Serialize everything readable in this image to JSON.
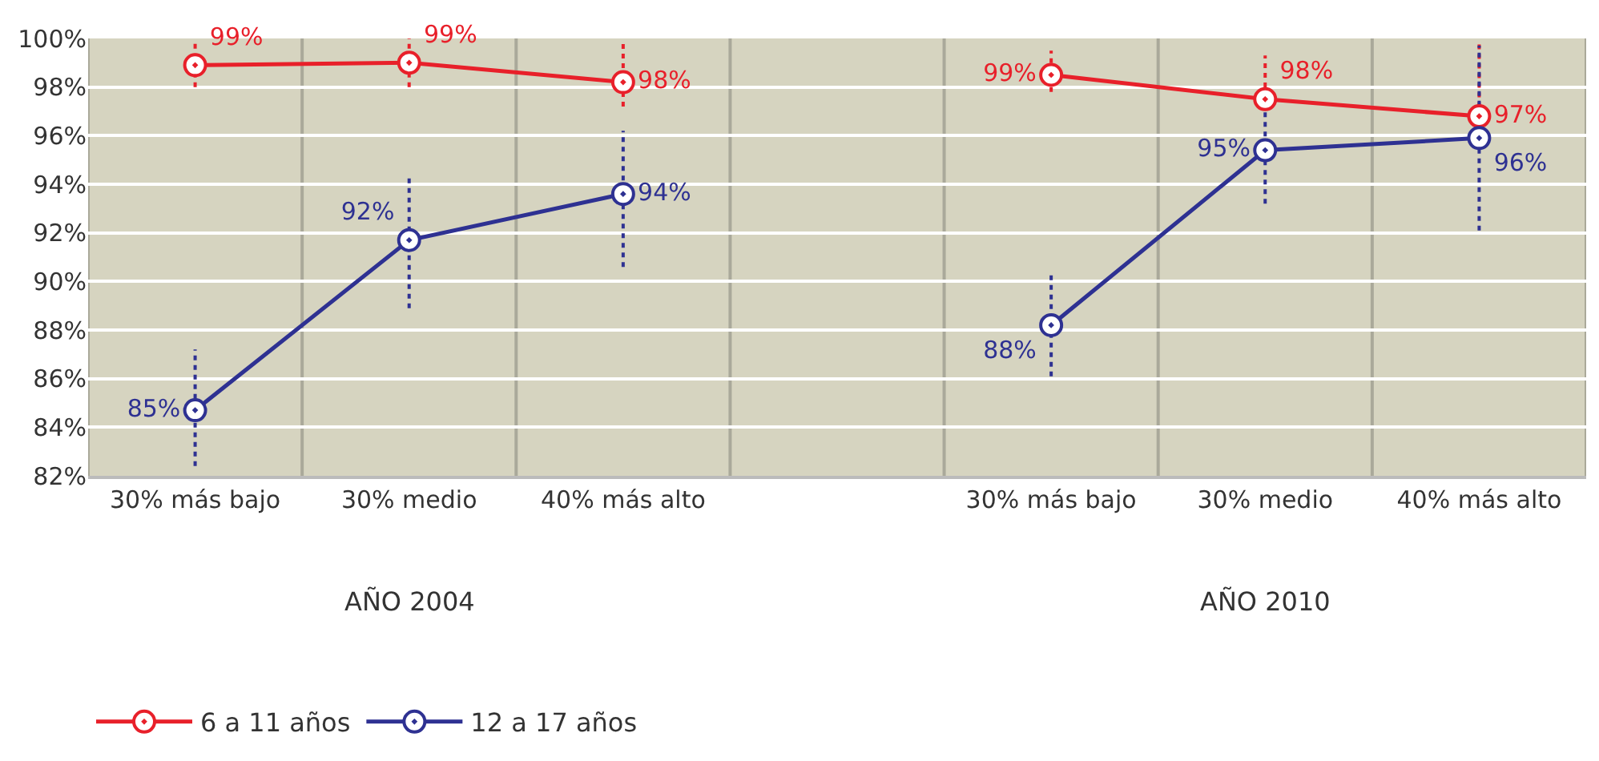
{
  "chart_data": {
    "type": "line",
    "categories": [
      "30% más bajo",
      "30% medio",
      "40% más alto",
      null,
      "30% más bajo",
      "30% medio",
      "40% más alto"
    ],
    "series": [
      {
        "name": "6 a 11 años",
        "color": "#e8202a",
        "values": [
          98.9,
          99.0,
          98.2,
          null,
          98.5,
          97.5,
          96.8
        ],
        "value_labels": [
          "99%",
          "99%",
          "98%",
          null,
          "99%",
          "98%",
          "97%"
        ],
        "errors": [
          [
            98.0,
            99.8
          ],
          [
            98.0,
            100.0
          ],
          [
            97.2,
            99.8
          ],
          null,
          [
            97.8,
            99.5
          ],
          [
            97.2,
            99.3
          ],
          [
            95.6,
            99.8
          ]
        ]
      },
      {
        "name": "12 a 17 años",
        "color": "#2e3192",
        "values": [
          84.7,
          91.7,
          93.6,
          null,
          88.2,
          95.4,
          95.9
        ],
        "value_labels": [
          "85%",
          "92%",
          "94%",
          null,
          "88%",
          "95%",
          "96%"
        ],
        "errors": [
          [
            82.4,
            87.2
          ],
          [
            88.9,
            94.4
          ],
          [
            90.6,
            96.2
          ],
          null,
          [
            86.1,
            90.4
          ],
          [
            93.2,
            97.2
          ],
          [
            92.1,
            99.7
          ]
        ]
      }
    ],
    "annotations": [
      "AÑO 2004",
      "AÑO 2010"
    ],
    "ylim": [
      82,
      100
    ],
    "yticks": [
      {
        "value": 82,
        "label": "82%"
      },
      {
        "value": 84,
        "label": "84%"
      },
      {
        "value": 86,
        "label": "86%"
      },
      {
        "value": 88,
        "label": "88%"
      },
      {
        "value": 90,
        "label": "90%"
      },
      {
        "value": 92,
        "label": "92%"
      },
      {
        "value": 94,
        "label": "94%"
      },
      {
        "value": 96,
        "label": "96%"
      },
      {
        "value": 98,
        "label": "98%"
      },
      {
        "value": 100,
        "label": "100%"
      }
    ],
    "grid": "y",
    "legend": "bottom left",
    "marker": "circle",
    "line_style": "solid"
  }
}
